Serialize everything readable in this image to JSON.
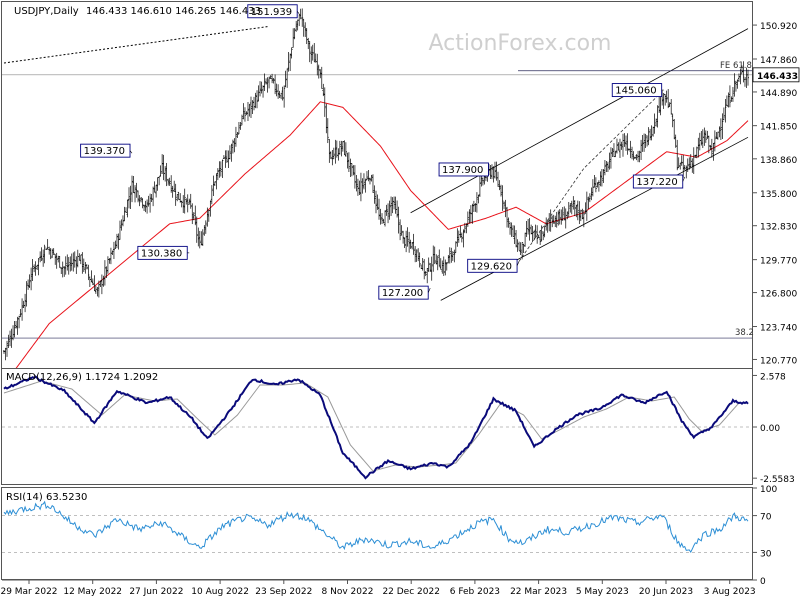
{
  "header": {
    "symbol": "USDJPY,Daily",
    "ohlc": "146.433 146.610 146.265 146.433",
    "watermark": "ActionForex.com"
  },
  "colors": {
    "candle": "#000000",
    "sma": "#e8131b",
    "channel": "#000000",
    "macd": "#0a0a7a",
    "signal": "#999999",
    "rsi": "#2d8fd5",
    "label_border": "#000080"
  },
  "chart_data": [
    {
      "type": "candlestick",
      "panel": "price",
      "ylim": [
        120.0,
        153.0
      ],
      "ticks": [
        {
          "v": 150.92,
          "label": "150.920"
        },
        {
          "v": 147.86,
          "label": "147.860"
        },
        {
          "v": 144.89,
          "label": "144.890"
        },
        {
          "v": 141.85,
          "label": "141.850"
        },
        {
          "v": 138.86,
          "label": "138.860"
        },
        {
          "v": 135.8,
          "label": "135.800"
        },
        {
          "v": 132.83,
          "label": "132.830"
        },
        {
          "v": 129.77,
          "label": "129.770"
        },
        {
          "v": 126.8,
          "label": "126.800"
        },
        {
          "v": 123.74,
          "label": "123.740"
        },
        {
          "v": 120.77,
          "label": "120.770"
        }
      ],
      "current_price": {
        "value": 146.433,
        "label": "146.433"
      },
      "x_labels": [
        "29 Mar 2022",
        "12 May 2022",
        "27 Jun 2022",
        "10 Aug 2022",
        "23 Sep 2022",
        "8 Nov 2022",
        "22 Dec 2022",
        "6 Feb 2023",
        "22 Mar 2023",
        "5 May 2023",
        "20 Jun 2023",
        "3 Aug 2023"
      ],
      "anchors": [
        {
          "i": 0,
          "v": 121.5
        },
        {
          "i": 5,
          "v": 123.0
        },
        {
          "i": 12,
          "v": 125.5
        },
        {
          "i": 18,
          "v": 128.5
        },
        {
          "i": 28,
          "v": 131.0
        },
        {
          "i": 40,
          "v": 129.0
        },
        {
          "i": 50,
          "v": 130.0
        },
        {
          "i": 62,
          "v": 126.8
        },
        {
          "i": 75,
          "v": 131.5
        },
        {
          "i": 85,
          "v": 136.5
        },
        {
          "i": 95,
          "v": 134.5
        },
        {
          "i": 105,
          "v": 138.0
        },
        {
          "i": 115,
          "v": 135.5
        },
        {
          "i": 124,
          "v": 134.5
        },
        {
          "i": 130,
          "v": 131.0
        },
        {
          "i": 140,
          "v": 137.0
        },
        {
          "i": 150,
          "v": 139.5
        },
        {
          "i": 158,
          "v": 142.5
        },
        {
          "i": 166,
          "v": 144.0
        },
        {
          "i": 176,
          "v": 146.0
        },
        {
          "i": 185,
          "v": 144.5
        },
        {
          "i": 193,
          "v": 150.5
        },
        {
          "i": 197,
          "v": 151.9
        },
        {
          "i": 203,
          "v": 148.5
        },
        {
          "i": 210,
          "v": 147.0
        },
        {
          "i": 216,
          "v": 139.0
        },
        {
          "i": 225,
          "v": 140.0
        },
        {
          "i": 235,
          "v": 136.0
        },
        {
          "i": 243,
          "v": 137.5
        },
        {
          "i": 250,
          "v": 133.0
        },
        {
          "i": 258,
          "v": 135.0
        },
        {
          "i": 265,
          "v": 131.5
        },
        {
          "i": 272,
          "v": 131.0
        },
        {
          "i": 280,
          "v": 128.5
        },
        {
          "i": 286,
          "v": 130.0
        },
        {
          "i": 292,
          "v": 129.0
        },
        {
          "i": 300,
          "v": 131.0
        },
        {
          "i": 310,
          "v": 134.0
        },
        {
          "i": 318,
          "v": 137.0
        },
        {
          "i": 324,
          "v": 137.9
        },
        {
          "i": 330,
          "v": 136.0
        },
        {
          "i": 336,
          "v": 132.5
        },
        {
          "i": 343,
          "v": 130.5
        },
        {
          "i": 348,
          "v": 132.5
        },
        {
          "i": 355,
          "v": 131.5
        },
        {
          "i": 363,
          "v": 133.5
        },
        {
          "i": 370,
          "v": 133.5
        },
        {
          "i": 378,
          "v": 134.5
        },
        {
          "i": 384,
          "v": 133.8
        },
        {
          "i": 392,
          "v": 136.5
        },
        {
          "i": 398,
          "v": 137.5
        },
        {
          "i": 405,
          "v": 139.5
        },
        {
          "i": 412,
          "v": 140.5
        },
        {
          "i": 420,
          "v": 139.0
        },
        {
          "i": 430,
          "v": 141.5
        },
        {
          "i": 438,
          "v": 145.0
        },
        {
          "i": 443,
          "v": 143.0
        },
        {
          "i": 447,
          "v": 138.5
        },
        {
          "i": 452,
          "v": 137.8
        },
        {
          "i": 458,
          "v": 139.0
        },
        {
          "i": 465,
          "v": 141.0
        },
        {
          "i": 470,
          "v": 139.5
        },
        {
          "i": 478,
          "v": 143.0
        },
        {
          "i": 485,
          "v": 145.5
        },
        {
          "i": 490,
          "v": 146.5
        },
        {
          "i": 494,
          "v": 146.43
        }
      ],
      "sma_anchors": [
        {
          "i": 0,
          "v": 118.5
        },
        {
          "i": 30,
          "v": 124.0
        },
        {
          "i": 70,
          "v": 128.5
        },
        {
          "i": 110,
          "v": 133.0
        },
        {
          "i": 130,
          "v": 133.5
        },
        {
          "i": 160,
          "v": 137.5
        },
        {
          "i": 190,
          "v": 141.0
        },
        {
          "i": 210,
          "v": 144.0
        },
        {
          "i": 225,
          "v": 143.5
        },
        {
          "i": 250,
          "v": 140.0
        },
        {
          "i": 270,
          "v": 136.0
        },
        {
          "i": 295,
          "v": 132.5
        },
        {
          "i": 320,
          "v": 133.5
        },
        {
          "i": 340,
          "v": 134.5
        },
        {
          "i": 360,
          "v": 133.0
        },
        {
          "i": 385,
          "v": 134.0
        },
        {
          "i": 410,
          "v": 136.5
        },
        {
          "i": 440,
          "v": 139.5
        },
        {
          "i": 460,
          "v": 139.0
        },
        {
          "i": 480,
          "v": 140.5
        },
        {
          "i": 494,
          "v": 142.3
        }
      ],
      "annotations": [
        {
          "i": 196,
          "v": 151.939,
          "label": "151.939",
          "pos": "left-above"
        },
        {
          "i": 85,
          "v": 139.37,
          "label": "139.370",
          "pos": "left-above"
        },
        {
          "i": 123,
          "v": 130.38,
          "label": "130.380",
          "pos": "left"
        },
        {
          "i": 283,
          "v": 127.2,
          "label": "127.200",
          "pos": "left-below"
        },
        {
          "i": 323,
          "v": 137.9,
          "label": "137.900",
          "pos": "left"
        },
        {
          "i": 342,
          "v": 129.62,
          "label": "129.620",
          "pos": "left-below"
        },
        {
          "i": 438,
          "v": 145.06,
          "label": "145.060",
          "pos": "left"
        },
        {
          "i": 452,
          "v": 137.22,
          "label": "137.220",
          "pos": "left-below"
        }
      ],
      "fe_label": "FE 61.8",
      "fe_level": 146.8,
      "fib_label": "38.2",
      "fib_level": 122.7,
      "dotted_trendline": [
        {
          "i": 0,
          "v": 147.5
        },
        {
          "i": 176,
          "v": 150.8
        }
      ],
      "channel_upper": [
        {
          "i": 270,
          "v": 134.0
        },
        {
          "i": 494,
          "v": 150.6
        }
      ],
      "channel_lower": [
        {
          "i": 290,
          "v": 126.1
        },
        {
          "i": 494,
          "v": 140.8
        }
      ],
      "wave_dashed": [
        {
          "i": 342,
          "v": 129.62
        },
        {
          "i": 385,
          "v": 138.0
        },
        {
          "i": 438,
          "v": 145.06
        }
      ]
    },
    {
      "type": "line",
      "panel": "macd",
      "title": "MACD(12,26,9) 1.1724 1.2092",
      "ylim": [
        -2.9,
        2.9
      ],
      "ticks": [
        {
          "v": 2.578,
          "label": "2.578"
        },
        {
          "v": 0.0,
          "label": "0.00"
        },
        {
          "v": -2.5583,
          "label": "-2.5583"
        }
      ],
      "macd_anchors": [
        {
          "i": 0,
          "v": 1.9
        },
        {
          "i": 20,
          "v": 2.5
        },
        {
          "i": 40,
          "v": 1.8
        },
        {
          "i": 60,
          "v": 0.2
        },
        {
          "i": 75,
          "v": 1.8
        },
        {
          "i": 95,
          "v": 1.2
        },
        {
          "i": 110,
          "v": 1.5
        },
        {
          "i": 125,
          "v": 0.4
        },
        {
          "i": 135,
          "v": -0.6
        },
        {
          "i": 150,
          "v": 0.8
        },
        {
          "i": 165,
          "v": 2.4
        },
        {
          "i": 180,
          "v": 2.1
        },
        {
          "i": 195,
          "v": 2.4
        },
        {
          "i": 210,
          "v": 1.6
        },
        {
          "i": 225,
          "v": -1.3
        },
        {
          "i": 240,
          "v": -2.5
        },
        {
          "i": 255,
          "v": -1.7
        },
        {
          "i": 270,
          "v": -2.1
        },
        {
          "i": 285,
          "v": -1.8
        },
        {
          "i": 295,
          "v": -2.0
        },
        {
          "i": 310,
          "v": -0.8
        },
        {
          "i": 325,
          "v": 1.4
        },
        {
          "i": 340,
          "v": 0.8
        },
        {
          "i": 352,
          "v": -1.0
        },
        {
          "i": 365,
          "v": -0.2
        },
        {
          "i": 380,
          "v": 0.6
        },
        {
          "i": 395,
          "v": 0.9
        },
        {
          "i": 410,
          "v": 1.6
        },
        {
          "i": 425,
          "v": 1.2
        },
        {
          "i": 440,
          "v": 1.8
        },
        {
          "i": 450,
          "v": 0.3
        },
        {
          "i": 458,
          "v": -0.5
        },
        {
          "i": 470,
          "v": 0.0
        },
        {
          "i": 484,
          "v": 1.3
        },
        {
          "i": 494,
          "v": 1.17
        }
      ],
      "signal_anchors": [
        {
          "i": 0,
          "v": 1.7
        },
        {
          "i": 25,
          "v": 2.3
        },
        {
          "i": 45,
          "v": 1.9
        },
        {
          "i": 65,
          "v": 0.6
        },
        {
          "i": 80,
          "v": 1.6
        },
        {
          "i": 100,
          "v": 1.3
        },
        {
          "i": 115,
          "v": 1.4
        },
        {
          "i": 130,
          "v": 0.3
        },
        {
          "i": 140,
          "v": -0.4
        },
        {
          "i": 155,
          "v": 0.6
        },
        {
          "i": 170,
          "v": 2.1
        },
        {
          "i": 185,
          "v": 2.1
        },
        {
          "i": 200,
          "v": 2.2
        },
        {
          "i": 215,
          "v": 1.5
        },
        {
          "i": 230,
          "v": -0.9
        },
        {
          "i": 245,
          "v": -2.2
        },
        {
          "i": 260,
          "v": -1.9
        },
        {
          "i": 275,
          "v": -2.0
        },
        {
          "i": 290,
          "v": -1.9
        },
        {
          "i": 300,
          "v": -1.8
        },
        {
          "i": 315,
          "v": -0.4
        },
        {
          "i": 330,
          "v": 1.2
        },
        {
          "i": 345,
          "v": 0.6
        },
        {
          "i": 357,
          "v": -0.6
        },
        {
          "i": 370,
          "v": -0.1
        },
        {
          "i": 385,
          "v": 0.5
        },
        {
          "i": 400,
          "v": 0.9
        },
        {
          "i": 415,
          "v": 1.5
        },
        {
          "i": 430,
          "v": 1.3
        },
        {
          "i": 445,
          "v": 1.5
        },
        {
          "i": 455,
          "v": 0.4
        },
        {
          "i": 463,
          "v": -0.2
        },
        {
          "i": 475,
          "v": 0.1
        },
        {
          "i": 488,
          "v": 1.2
        },
        {
          "i": 494,
          "v": 1.21
        }
      ]
    },
    {
      "type": "line",
      "panel": "rsi",
      "title": "RSI(14) 63.5230",
      "ylim": [
        0,
        100
      ],
      "ticks": [
        {
          "v": 100,
          "label": "100"
        },
        {
          "v": 70,
          "label": "70"
        },
        {
          "v": 30,
          "label": "30"
        },
        {
          "v": 0,
          "label": "0"
        }
      ],
      "rsi_anchors": [
        {
          "i": 0,
          "v": 72
        },
        {
          "i": 15,
          "v": 78
        },
        {
          "i": 30,
          "v": 82
        },
        {
          "i": 45,
          "v": 62
        },
        {
          "i": 60,
          "v": 48
        },
        {
          "i": 75,
          "v": 66
        },
        {
          "i": 90,
          "v": 55
        },
        {
          "i": 105,
          "v": 62
        },
        {
          "i": 120,
          "v": 45
        },
        {
          "i": 130,
          "v": 35
        },
        {
          "i": 145,
          "v": 58
        },
        {
          "i": 160,
          "v": 68
        },
        {
          "i": 175,
          "v": 60
        },
        {
          "i": 190,
          "v": 72
        },
        {
          "i": 200,
          "v": 68
        },
        {
          "i": 210,
          "v": 55
        },
        {
          "i": 225,
          "v": 35
        },
        {
          "i": 240,
          "v": 45
        },
        {
          "i": 255,
          "v": 38
        },
        {
          "i": 270,
          "v": 42
        },
        {
          "i": 285,
          "v": 35
        },
        {
          "i": 300,
          "v": 48
        },
        {
          "i": 315,
          "v": 62
        },
        {
          "i": 325,
          "v": 66
        },
        {
          "i": 335,
          "v": 45
        },
        {
          "i": 345,
          "v": 40
        },
        {
          "i": 360,
          "v": 55
        },
        {
          "i": 375,
          "v": 52
        },
        {
          "i": 390,
          "v": 60
        },
        {
          "i": 405,
          "v": 68
        },
        {
          "i": 420,
          "v": 62
        },
        {
          "i": 437,
          "v": 70
        },
        {
          "i": 448,
          "v": 40
        },
        {
          "i": 455,
          "v": 32
        },
        {
          "i": 465,
          "v": 50
        },
        {
          "i": 475,
          "v": 55
        },
        {
          "i": 485,
          "v": 70
        },
        {
          "i": 494,
          "v": 63.5
        }
      ]
    }
  ]
}
